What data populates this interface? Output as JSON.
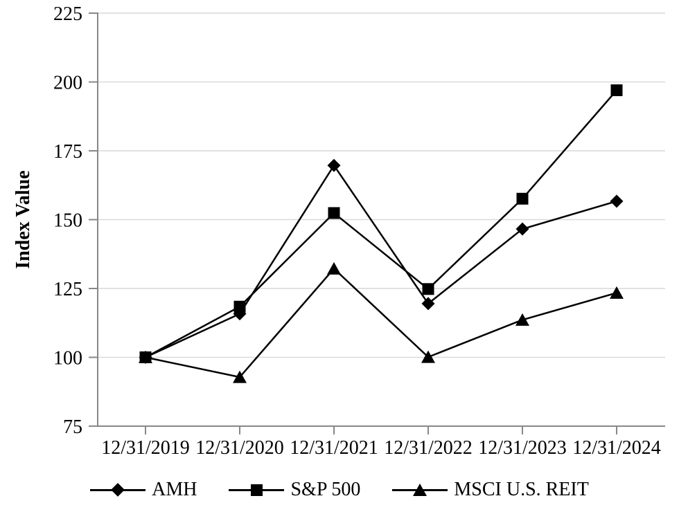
{
  "page": {
    "background_color": "#ffffff",
    "text_color": "#000000"
  },
  "chart_data": {
    "type": "line",
    "title": "",
    "xlabel": "",
    "ylabel": "Index Value",
    "x": [
      "12/31/2019",
      "12/31/2020",
      "12/31/2021",
      "12/31/2022",
      "12/31/2023",
      "12/31/2024"
    ],
    "y_ticks": [
      75,
      100,
      125,
      150,
      175,
      200,
      225
    ],
    "ylim": [
      75,
      225
    ],
    "grid": "horizontal",
    "legend_position": "bottom",
    "series": [
      {
        "name": "AMH",
        "marker": "diamond",
        "color": "#000000",
        "values": [
          100,
          115.8,
          169.7,
          119.5,
          146.6,
          156.7
        ]
      },
      {
        "name": "S&P 500",
        "marker": "square",
        "color": "#000000",
        "values": [
          100,
          118.4,
          152.4,
          124.8,
          157.6,
          197.0
        ]
      },
      {
        "name": "MSCI U.S. REIT",
        "marker": "triangle",
        "color": "#000000",
        "values": [
          100,
          92.8,
          132.2,
          100.1,
          113.6,
          123.4
        ]
      }
    ],
    "axis_color": "#878787",
    "gridline_color": "#d9d9d9",
    "draw_order": [
      0,
      2,
      1
    ]
  }
}
